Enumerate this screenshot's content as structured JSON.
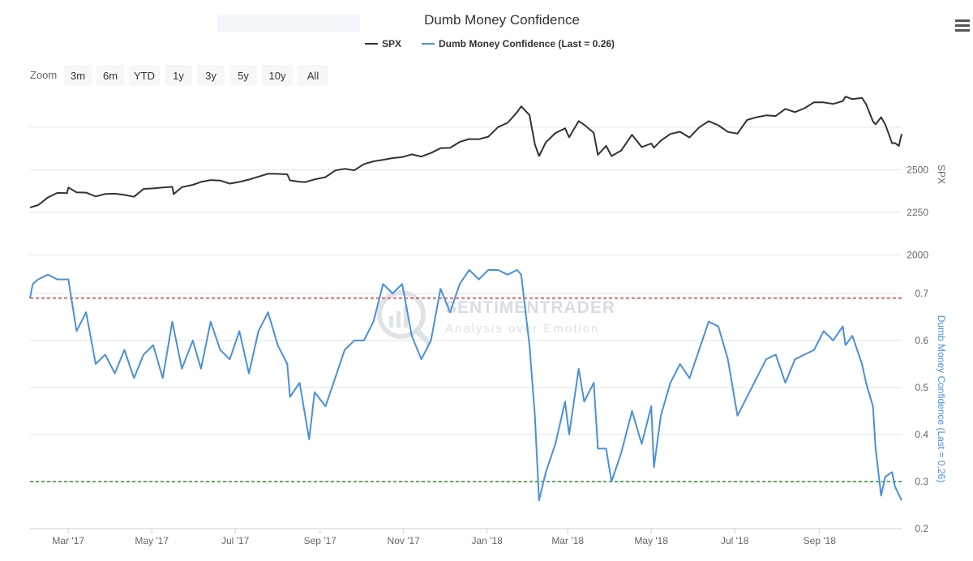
{
  "menu_icon": "hamburger-menu-icon",
  "zoom": {
    "label": "Zoom",
    "buttons": [
      "3m",
      "6m",
      "YTD",
      "1y",
      "3y",
      "5y",
      "10y",
      "All"
    ]
  },
  "watermark": {
    "main": "SENTIMENTRADER",
    "sub": "Analysis over Emotion",
    "logo_icon": "sentimentrader-logo-icon"
  },
  "chart_data": {
    "type": "line",
    "title": "Dumb Money Confidence",
    "legend": [
      "SPX",
      "Dumb Money Confidence (Last = 0.26)"
    ],
    "legend_placement": "top-center",
    "x_ticks": [
      "Mar '17",
      "May '17",
      "Jul '17",
      "Sep '17",
      "Nov '17",
      "Jan '18",
      "Mar '18",
      "May '18",
      "Jul '18",
      "Sep '18"
    ],
    "x_range": [
      "2017-02-01",
      "2018-10-31"
    ],
    "colors": {
      "spx": "#333333",
      "dmc": "#4a90d9",
      "upper_line": "#e03b3b",
      "lower_line": "#2e8b2e"
    },
    "panels": [
      {
        "name": "SPX",
        "axis_title": "SPX",
        "y_ticks": [
          2000,
          2250,
          2500
        ],
        "y_range": [
          1950,
          2950
        ],
        "series": [
          {
            "name": "SPX",
            "points": [
              [
                "2017-02-01",
                2279
              ],
              [
                "2017-02-07",
                2293
              ],
              [
                "2017-02-14",
                2337
              ],
              [
                "2017-02-21",
                2365
              ],
              [
                "2017-02-28",
                2363
              ],
              [
                "2017-03-01",
                2396
              ],
              [
                "2017-03-07",
                2368
              ],
              [
                "2017-03-14",
                2366
              ],
              [
                "2017-03-21",
                2344
              ],
              [
                "2017-03-28",
                2358
              ],
              [
                "2017-04-04",
                2360
              ],
              [
                "2017-04-11",
                2353
              ],
              [
                "2017-04-18",
                2342
              ],
              [
                "2017-04-25",
                2388
              ],
              [
                "2017-05-02",
                2391
              ],
              [
                "2017-05-09",
                2396
              ],
              [
                "2017-05-16",
                2400
              ],
              [
                "2017-05-17",
                2357
              ],
              [
                "2017-05-23",
                2398
              ],
              [
                "2017-05-31",
                2412
              ],
              [
                "2017-06-06",
                2429
              ],
              [
                "2017-06-13",
                2440
              ],
              [
                "2017-06-20",
                2437
              ],
              [
                "2017-06-27",
                2419
              ],
              [
                "2017-07-04",
                2429
              ],
              [
                "2017-07-11",
                2443
              ],
              [
                "2017-07-18",
                2460
              ],
              [
                "2017-07-25",
                2477
              ],
              [
                "2017-08-01",
                2476
              ],
              [
                "2017-08-08",
                2474
              ],
              [
                "2017-08-10",
                2438
              ],
              [
                "2017-08-17",
                2430
              ],
              [
                "2017-08-21",
                2428
              ],
              [
                "2017-08-28",
                2444
              ],
              [
                "2017-09-05",
                2457
              ],
              [
                "2017-09-12",
                2496
              ],
              [
                "2017-09-19",
                2506
              ],
              [
                "2017-09-26",
                2497
              ],
              [
                "2017-10-03",
                2534
              ],
              [
                "2017-10-10",
                2550
              ],
              [
                "2017-10-17",
                2559
              ],
              [
                "2017-10-24",
                2569
              ],
              [
                "2017-10-31",
                2575
              ],
              [
                "2017-11-07",
                2591
              ],
              [
                "2017-11-14",
                2578
              ],
              [
                "2017-11-21",
                2599
              ],
              [
                "2017-11-28",
                2627
              ],
              [
                "2017-12-05",
                2629
              ],
              [
                "2017-12-12",
                2664
              ],
              [
                "2017-12-19",
                2681
              ],
              [
                "2017-12-26",
                2680
              ],
              [
                "2018-01-02",
                2695
              ],
              [
                "2018-01-09",
                2751
              ],
              [
                "2018-01-16",
                2776
              ],
              [
                "2018-01-23",
                2839
              ],
              [
                "2018-01-26",
                2873
              ],
              [
                "2018-02-01",
                2822
              ],
              [
                "2018-02-05",
                2649
              ],
              [
                "2018-02-08",
                2581
              ],
              [
                "2018-02-13",
                2662
              ],
              [
                "2018-02-20",
                2716
              ],
              [
                "2018-02-27",
                2744
              ],
              [
                "2018-03-02",
                2691
              ],
              [
                "2018-03-09",
                2786
              ],
              [
                "2018-03-13",
                2765
              ],
              [
                "2018-03-20",
                2717
              ],
              [
                "2018-03-23",
                2588
              ],
              [
                "2018-03-29",
                2641
              ],
              [
                "2018-04-02",
                2581
              ],
              [
                "2018-04-09",
                2613
              ],
              [
                "2018-04-17",
                2706
              ],
              [
                "2018-04-24",
                2634
              ],
              [
                "2018-05-01",
                2655
              ],
              [
                "2018-05-03",
                2630
              ],
              [
                "2018-05-08",
                2671
              ],
              [
                "2018-05-15",
                2711
              ],
              [
                "2018-05-22",
                2724
              ],
              [
                "2018-05-29",
                2690
              ],
              [
                "2018-06-05",
                2749
              ],
              [
                "2018-06-12",
                2786
              ],
              [
                "2018-06-19",
                2762
              ],
              [
                "2018-06-26",
                2723
              ],
              [
                "2018-07-03",
                2713
              ],
              [
                "2018-07-10",
                2793
              ],
              [
                "2018-07-17",
                2809
              ],
              [
                "2018-07-24",
                2820
              ],
              [
                "2018-07-31",
                2816
              ],
              [
                "2018-08-07",
                2858
              ],
              [
                "2018-08-14",
                2839
              ],
              [
                "2018-08-21",
                2862
              ],
              [
                "2018-08-28",
                2897
              ],
              [
                "2018-09-04",
                2896
              ],
              [
                "2018-09-11",
                2887
              ],
              [
                "2018-09-18",
                2904
              ],
              [
                "2018-09-20",
                2930
              ],
              [
                "2018-09-25",
                2915
              ],
              [
                "2018-10-02",
                2923
              ],
              [
                "2018-10-05",
                2886
              ],
              [
                "2018-10-10",
                2785
              ],
              [
                "2018-10-12",
                2767
              ],
              [
                "2018-10-16",
                2809
              ],
              [
                "2018-10-19",
                2768
              ],
              [
                "2018-10-24",
                2656
              ],
              [
                "2018-10-26",
                2658
              ],
              [
                "2018-10-29",
                2641
              ],
              [
                "2018-10-31",
                2711
              ]
            ]
          }
        ]
      },
      {
        "name": "Dumb Money Confidence",
        "axis_title": "Dumb Money Confidence (Last = 0.26)",
        "y_ticks": [
          0.2,
          0.3,
          0.4,
          0.5,
          0.6,
          0.7
        ],
        "y_range": [
          0.2,
          0.75
        ],
        "reference_lines": [
          {
            "value": 0.69,
            "color": "#e03b3b"
          },
          {
            "value": 0.3,
            "color": "#2e8b2e"
          }
        ],
        "series": [
          {
            "name": "Dumb Money Confidence (Last = 0.26)",
            "points": [
              [
                "2017-02-01",
                0.69
              ],
              [
                "2017-02-03",
                0.72
              ],
              [
                "2017-02-07",
                0.73
              ],
              [
                "2017-02-14",
                0.74
              ],
              [
                "2017-02-21",
                0.73
              ],
              [
                "2017-03-01",
                0.73
              ],
              [
                "2017-03-07",
                0.62
              ],
              [
                "2017-03-14",
                0.66
              ],
              [
                "2017-03-21",
                0.55
              ],
              [
                "2017-03-28",
                0.57
              ],
              [
                "2017-04-04",
                0.53
              ],
              [
                "2017-04-11",
                0.58
              ],
              [
                "2017-04-18",
                0.52
              ],
              [
                "2017-04-25",
                0.57
              ],
              [
                "2017-05-02",
                0.59
              ],
              [
                "2017-05-09",
                0.52
              ],
              [
                "2017-05-16",
                0.64
              ],
              [
                "2017-05-23",
                0.54
              ],
              [
                "2017-05-31",
                0.6
              ],
              [
                "2017-06-06",
                0.54
              ],
              [
                "2017-06-13",
                0.64
              ],
              [
                "2017-06-20",
                0.58
              ],
              [
                "2017-06-27",
                0.56
              ],
              [
                "2017-07-04",
                0.62
              ],
              [
                "2017-07-11",
                0.53
              ],
              [
                "2017-07-18",
                0.62
              ],
              [
                "2017-07-25",
                0.66
              ],
              [
                "2017-08-01",
                0.59
              ],
              [
                "2017-08-08",
                0.55
              ],
              [
                "2017-08-10",
                0.48
              ],
              [
                "2017-08-17",
                0.51
              ],
              [
                "2017-08-24",
                0.39
              ],
              [
                "2017-08-28",
                0.49
              ],
              [
                "2017-09-05",
                0.46
              ],
              [
                "2017-09-12",
                0.52
              ],
              [
                "2017-09-19",
                0.58
              ],
              [
                "2017-09-26",
                0.6
              ],
              [
                "2017-10-03",
                0.6
              ],
              [
                "2017-10-10",
                0.64
              ],
              [
                "2017-10-17",
                0.72
              ],
              [
                "2017-10-24",
                0.7
              ],
              [
                "2017-10-31",
                0.72
              ],
              [
                "2017-11-07",
                0.61
              ],
              [
                "2017-11-14",
                0.56
              ],
              [
                "2017-11-21",
                0.6
              ],
              [
                "2017-11-28",
                0.71
              ],
              [
                "2017-12-05",
                0.66
              ],
              [
                "2017-12-12",
                0.72
              ],
              [
                "2017-12-19",
                0.75
              ],
              [
                "2017-12-26",
                0.73
              ],
              [
                "2018-01-02",
                0.75
              ],
              [
                "2018-01-09",
                0.75
              ],
              [
                "2018-01-16",
                0.74
              ],
              [
                "2018-01-23",
                0.75
              ],
              [
                "2018-01-26",
                0.74
              ],
              [
                "2018-02-01",
                0.59
              ],
              [
                "2018-02-05",
                0.44
              ],
              [
                "2018-02-08",
                0.26
              ],
              [
                "2018-02-13",
                0.32
              ],
              [
                "2018-02-20",
                0.38
              ],
              [
                "2018-02-27",
                0.47
              ],
              [
                "2018-03-02",
                0.4
              ],
              [
                "2018-03-09",
                0.54
              ],
              [
                "2018-03-13",
                0.47
              ],
              [
                "2018-03-20",
                0.51
              ],
              [
                "2018-03-23",
                0.37
              ],
              [
                "2018-03-29",
                0.37
              ],
              [
                "2018-04-02",
                0.3
              ],
              [
                "2018-04-09",
                0.36
              ],
              [
                "2018-04-17",
                0.45
              ],
              [
                "2018-04-24",
                0.38
              ],
              [
                "2018-05-01",
                0.46
              ],
              [
                "2018-05-03",
                0.33
              ],
              [
                "2018-05-08",
                0.44
              ],
              [
                "2018-05-15",
                0.51
              ],
              [
                "2018-05-22",
                0.55
              ],
              [
                "2018-05-29",
                0.52
              ],
              [
                "2018-06-05",
                0.58
              ],
              [
                "2018-06-12",
                0.64
              ],
              [
                "2018-06-19",
                0.63
              ],
              [
                "2018-06-26",
                0.56
              ],
              [
                "2018-07-03",
                0.44
              ],
              [
                "2018-07-10",
                0.48
              ],
              [
                "2018-07-17",
                0.52
              ],
              [
                "2018-07-24",
                0.56
              ],
              [
                "2018-07-31",
                0.57
              ],
              [
                "2018-08-07",
                0.51
              ],
              [
                "2018-08-14",
                0.56
              ],
              [
                "2018-08-21",
                0.57
              ],
              [
                "2018-08-28",
                0.58
              ],
              [
                "2018-09-04",
                0.62
              ],
              [
                "2018-09-11",
                0.6
              ],
              [
                "2018-09-18",
                0.63
              ],
              [
                "2018-09-20",
                0.59
              ],
              [
                "2018-09-25",
                0.61
              ],
              [
                "2018-10-02",
                0.55
              ],
              [
                "2018-10-05",
                0.51
              ],
              [
                "2018-10-10",
                0.46
              ],
              [
                "2018-10-12",
                0.37
              ],
              [
                "2018-10-16",
                0.27
              ],
              [
                "2018-10-19",
                0.31
              ],
              [
                "2018-10-24",
                0.32
              ],
              [
                "2018-10-26",
                0.29
              ],
              [
                "2018-10-31",
                0.26
              ]
            ]
          }
        ]
      }
    ]
  }
}
